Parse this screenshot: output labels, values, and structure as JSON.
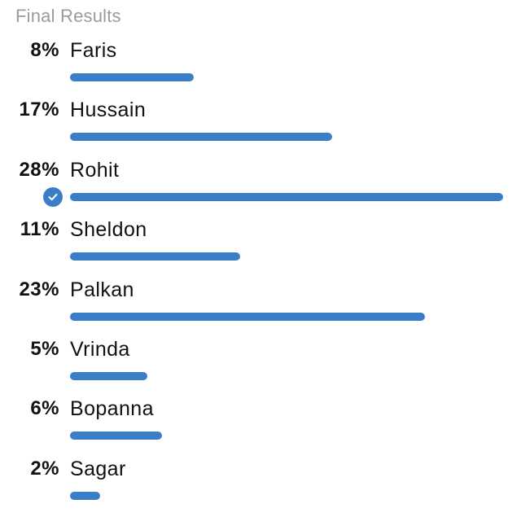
{
  "title": "Final Results",
  "accent_color": "#3b7ec8",
  "options": [
    {
      "label": "Faris",
      "percent_text": "8%",
      "fill": 0.285,
      "selected": false
    },
    {
      "label": "Hussain",
      "percent_text": "17%",
      "fill": 0.605,
      "selected": false
    },
    {
      "label": "Rohit",
      "percent_text": "28%",
      "fill": 1.0,
      "selected": true
    },
    {
      "label": "Sheldon",
      "percent_text": "11%",
      "fill": 0.393,
      "selected": false
    },
    {
      "label": "Palkan",
      "percent_text": "23%",
      "fill": 0.82,
      "selected": false
    },
    {
      "label": "Vrinda",
      "percent_text": "5%",
      "fill": 0.178,
      "selected": false
    },
    {
      "label": "Bopanna",
      "percent_text": "6%",
      "fill": 0.212,
      "selected": false
    },
    {
      "label": "Sagar",
      "percent_text": "2%",
      "fill": 0.07,
      "selected": false
    }
  ],
  "selected_icon": "checkmark-circle-icon"
}
